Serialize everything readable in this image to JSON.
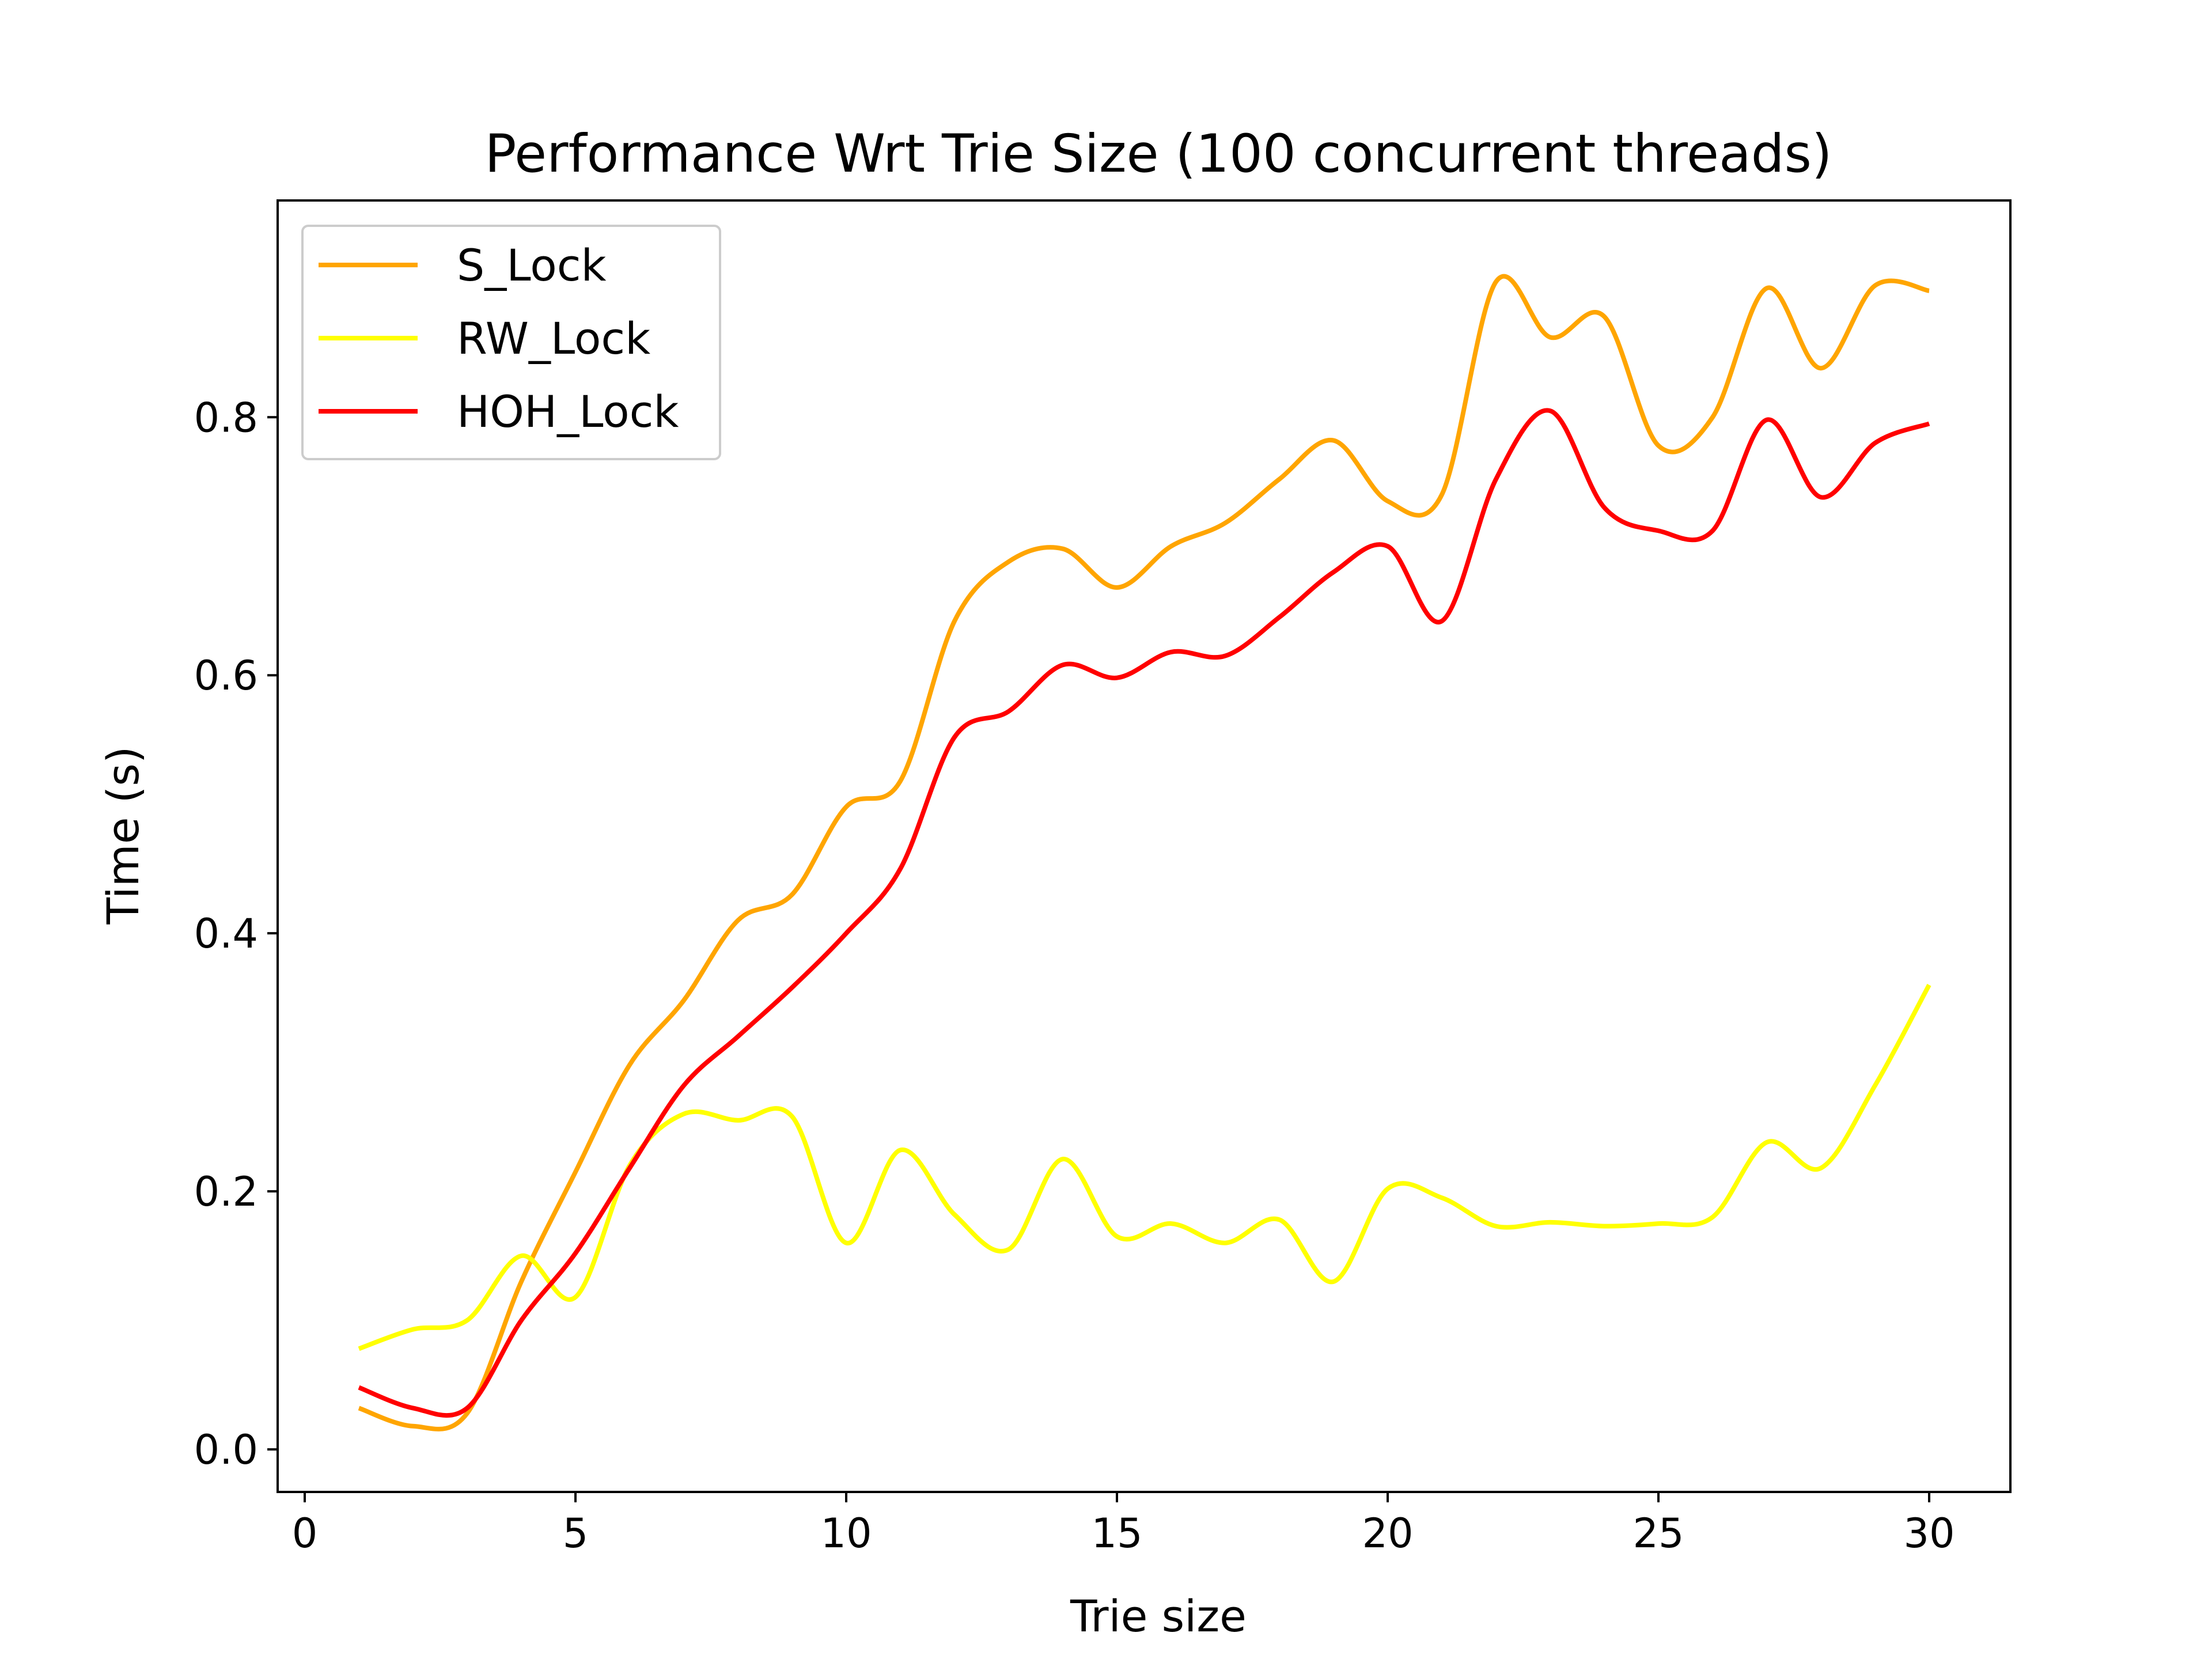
{
  "chart_data": {
    "type": "line",
    "title": "Performance Wrt Trie Size (100 concurrent threads)",
    "xlabel": "Trie size",
    "ylabel": "Time (s)",
    "xlim": [
      -0.5,
      31.5
    ],
    "ylim": [
      -0.033,
      0.968
    ],
    "xticks": [
      0,
      5,
      10,
      15,
      20,
      25,
      30
    ],
    "yticks": [
      0.0,
      0.2,
      0.4,
      0.6,
      0.8
    ],
    "xtick_labels": [
      "0",
      "5",
      "10",
      "15",
      "20",
      "25",
      "30"
    ],
    "ytick_labels": [
      "0.0",
      "0.2",
      "0.4",
      "0.6",
      "0.8"
    ],
    "grid": false,
    "legend_position": "top-left",
    "x": [
      1,
      2,
      3,
      4,
      5,
      6,
      7,
      8,
      9,
      10,
      11,
      12,
      13,
      14,
      15,
      16,
      17,
      18,
      19,
      20,
      21,
      22,
      23,
      24,
      25,
      26,
      27,
      28,
      29,
      30
    ],
    "series": [
      {
        "name": "S_Lock",
        "color": "#FFA500",
        "values": [
          0.032,
          0.018,
          0.028,
          0.13,
          0.215,
          0.298,
          0.348,
          0.41,
          0.43,
          0.498,
          0.518,
          0.642,
          0.688,
          0.698,
          0.668,
          0.7,
          0.718,
          0.752,
          0.782,
          0.735,
          0.74,
          0.905,
          0.862,
          0.878,
          0.778,
          0.8,
          0.9,
          0.838,
          0.902,
          0.898
        ]
      },
      {
        "name": "RW_Lock",
        "color": "#FFFF00",
        "values": [
          0.078,
          0.093,
          0.1,
          0.15,
          0.118,
          0.22,
          0.26,
          0.255,
          0.258,
          0.16,
          0.232,
          0.182,
          0.155,
          0.225,
          0.165,
          0.175,
          0.16,
          0.178,
          0.13,
          0.202,
          0.195,
          0.173,
          0.176,
          0.173,
          0.175,
          0.18,
          0.238,
          0.218,
          0.282,
          0.36
        ]
      },
      {
        "name": "HOH_Lock",
        "color": "#FF0000",
        "values": [
          0.048,
          0.032,
          0.032,
          0.1,
          0.152,
          0.218,
          0.282,
          0.32,
          0.358,
          0.4,
          0.45,
          0.552,
          0.572,
          0.608,
          0.598,
          0.618,
          0.615,
          0.645,
          0.68,
          0.7,
          0.642,
          0.752,
          0.805,
          0.73,
          0.712,
          0.712,
          0.798,
          0.738,
          0.78,
          0.795
        ]
      }
    ]
  }
}
